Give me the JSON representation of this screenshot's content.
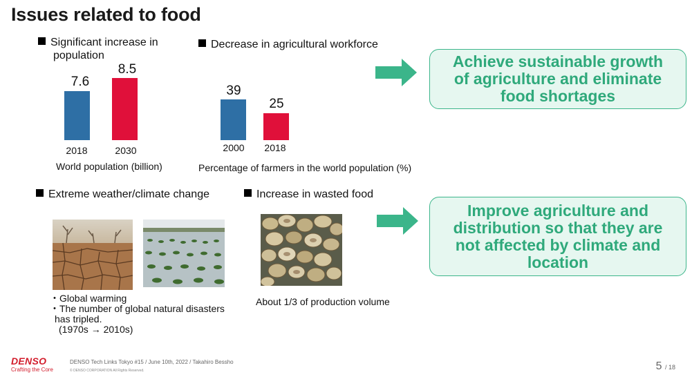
{
  "title": "Issues related to food",
  "population": {
    "heading_line1": "Significant increase in",
    "heading_line2": "population",
    "caption": "World population (billion)",
    "bars": [
      {
        "category": "2018",
        "value": "7.6",
        "color": "#2e6fa5"
      },
      {
        "category": "2030",
        "value": "8.5",
        "color": "#e0103a"
      }
    ]
  },
  "workforce": {
    "heading": "Decrease in agricultural workforce",
    "caption": "Percentage of farmers in the world population (%)",
    "bars": [
      {
        "category": "2000",
        "value": "39",
        "color": "#2e6fa5"
      },
      {
        "category": "2018",
        "value": "25",
        "color": "#e0103a"
      }
    ]
  },
  "goal_top": {
    "lines": [
      "Achieve sustainable growth",
      "of agriculture and eliminate",
      "food shortages"
    ]
  },
  "weather": {
    "heading": "Extreme weather/climate change",
    "bullet1": "・Global warming",
    "bullet2_line1": "・The number of global natural disasters",
    "bullet2_line2": "has tripled.",
    "bullet2_line3": "(1970s → 2010s)"
  },
  "waste": {
    "heading": "Increase in wasted food",
    "caption": "About 1/3 of production volume"
  },
  "goal_bottom": {
    "lines": [
      "Improve agriculture and",
      "distribution so that they are",
      "not affected by climate and",
      "location"
    ]
  },
  "footer": {
    "logo": "DENSO",
    "tagline": "Crafting the Core",
    "meta": "DENSO  Tech Links Tokyo #15 / June 10th, 2022 / Takahiro Bessho",
    "copyright": "© DENSO CORPORATION  All Rights Reserved.",
    "page_current": "5",
    "page_total": "/ 18"
  },
  "colors": {
    "accent_green": "#2fa97b",
    "arrow_green": "#3bb58a",
    "bar_blue": "#2e6fa5",
    "bar_red": "#e0103a",
    "brand_red": "#d21c2b"
  }
}
